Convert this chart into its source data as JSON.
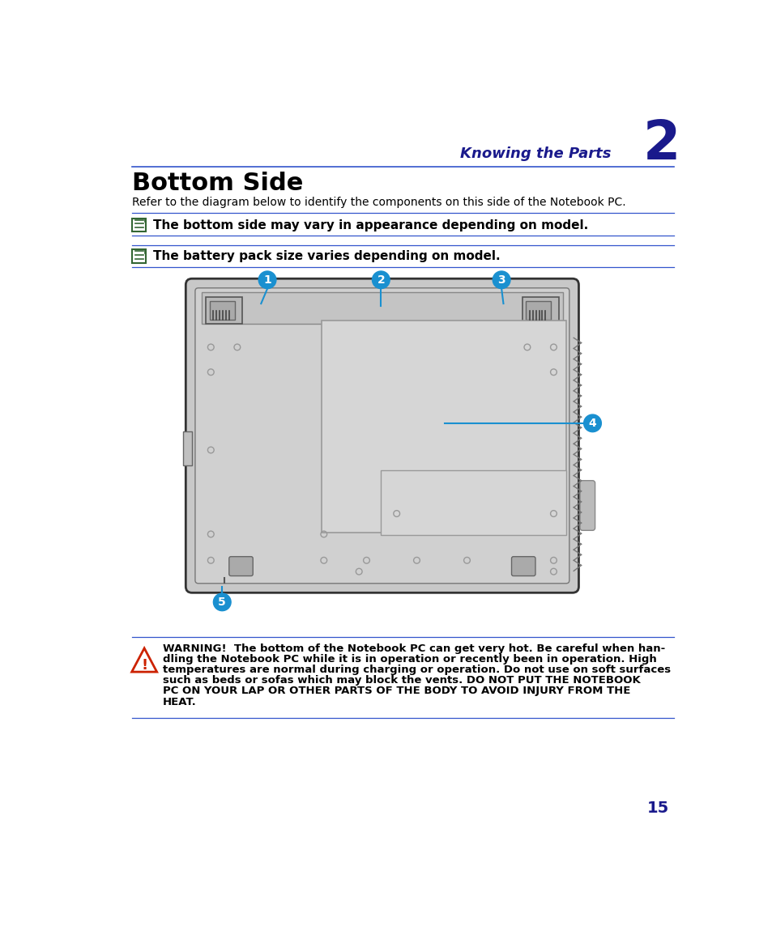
{
  "title_section": "Knowing the Parts",
  "chapter_num": "2",
  "section_title": "Bottom Side",
  "intro_text": "Refer to the diagram below to identify the components on this side of the Notebook PC.",
  "note1": "The bottom side may vary in appearance depending on model.",
  "note2": "The battery pack size varies depending on model.",
  "warning_line1": "WARNING!  The bottom of the Notebook PC can get very hot. Be careful when han-",
  "warning_line2": "dling the Notebook PC while it is in operation or recently been in operation. High",
  "warning_line3": "temperatures are normal during charging or operation. Do not use on soft surfaces",
  "warning_line4": "such as beds or sofas which may block the vents. DO NOT PUT THE NOTEBOOK",
  "warning_line5": "PC ON YOUR LAP OR OTHER PARTS OF THE BODY TO AVOID INJURY FROM THE",
  "warning_line6": "HEAT.",
  "page_num": "15",
  "header_color": "#1a1a8c",
  "line_color": "#3355cc",
  "callout_color": "#1a90d0",
  "bg_color": "#ffffff",
  "laptop_bg": "#cccccc",
  "laptop_outline": "#444444",
  "note_green": "#336633",
  "warning_red": "#cc2200"
}
